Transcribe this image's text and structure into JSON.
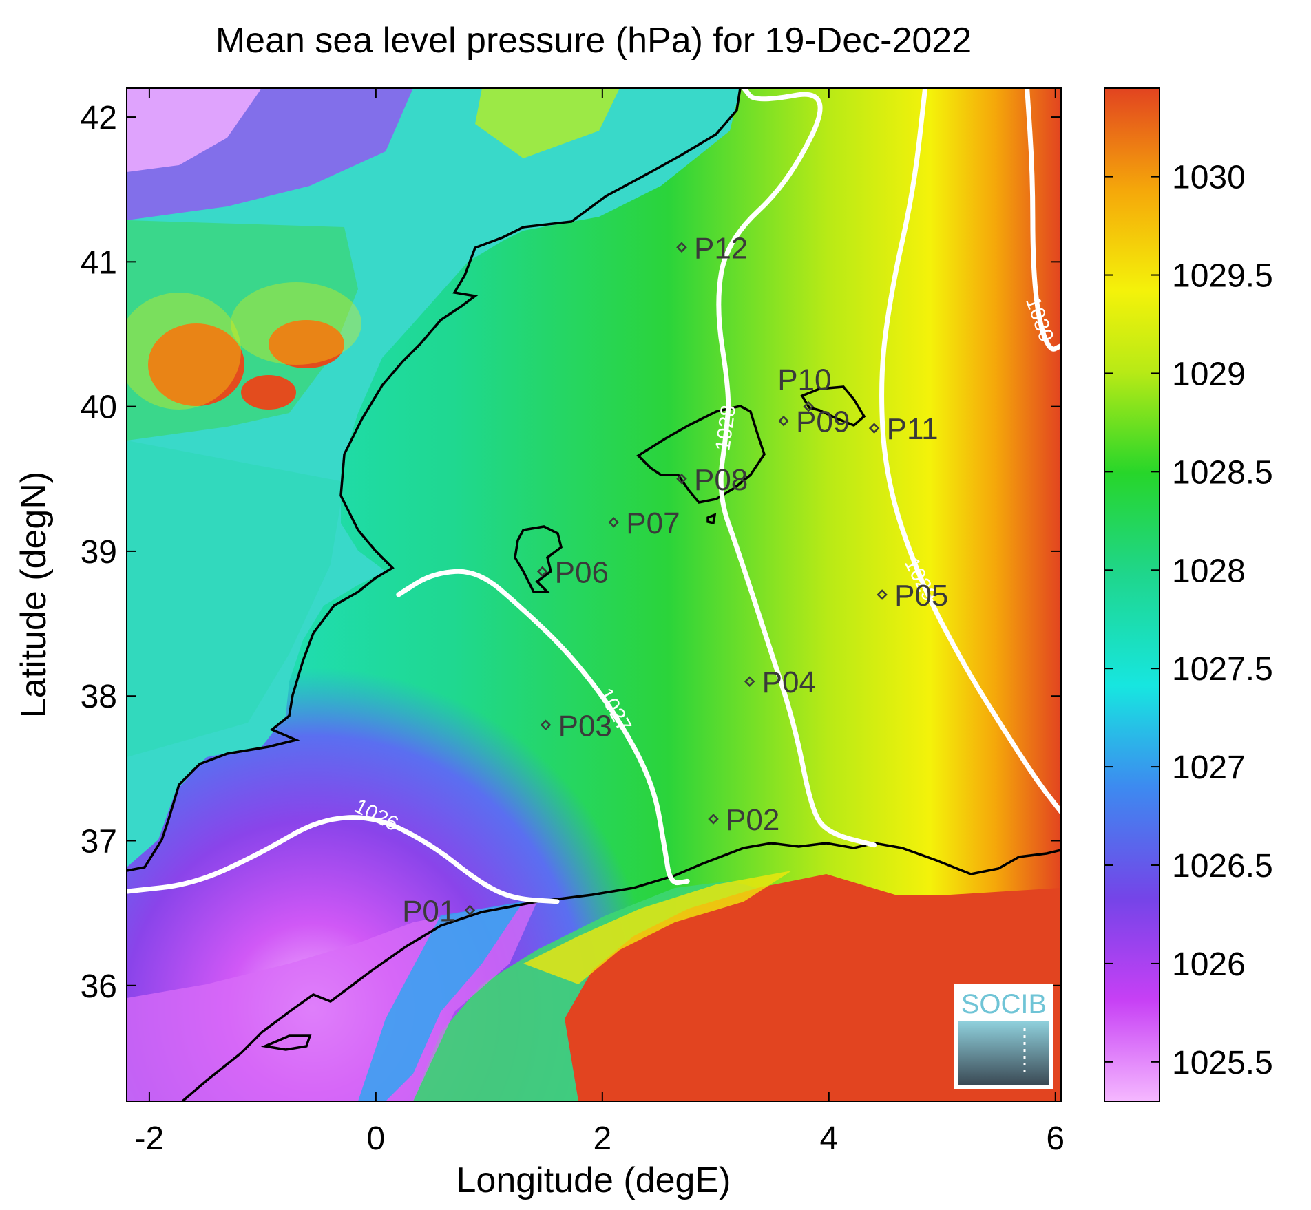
{
  "chart_data": {
    "type": "heatmap",
    "title": "Mean sea level pressure (hPa) for 19-Dec-2022",
    "xlabel": "Longitude (degE)",
    "ylabel": "Latitude (degN)",
    "xlim": [
      -2.2,
      6.05
    ],
    "ylim": [
      35.2,
      42.2
    ],
    "x_ticks": [
      -2,
      0,
      2,
      4,
      6
    ],
    "x_tick_labels": [
      "-2",
      "0",
      "2",
      "4",
      "6"
    ],
    "y_ticks": [
      36,
      37,
      38,
      39,
      40,
      41,
      42
    ],
    "y_tick_labels": [
      "36",
      "37",
      "38",
      "39",
      "40",
      "41",
      "42"
    ],
    "colorbar": {
      "range": [
        1025.3,
        1030.45
      ],
      "ticks": [
        1025.5,
        1026,
        1026.5,
        1027,
        1027.5,
        1028,
        1028.5,
        1029,
        1029.5,
        1030
      ],
      "tick_labels": [
        "1025.5",
        "1026",
        "1026.5",
        "1027",
        "1027.5",
        "1028",
        "1028.5",
        "1029",
        "1029.5",
        "1030"
      ],
      "colors": [
        "#f5b8ff",
        "#c740f5",
        "#7544e8",
        "#3d8af0",
        "#17e6e0",
        "#1fd68c",
        "#27d62a",
        "#b8ea16",
        "#f4f20a",
        "#f5a70a",
        "#e24420"
      ]
    },
    "points": [
      {
        "name": "P01",
        "lon": 0.83,
        "lat": 36.52
      },
      {
        "name": "P02",
        "lon": 2.98,
        "lat": 37.15
      },
      {
        "name": "P03",
        "lon": 1.5,
        "lat": 37.8
      },
      {
        "name": "P04",
        "lon": 3.3,
        "lat": 38.1
      },
      {
        "name": "P05",
        "lon": 4.47,
        "lat": 38.7
      },
      {
        "name": "P06",
        "lon": 1.47,
        "lat": 38.86
      },
      {
        "name": "P07",
        "lon": 2.1,
        "lat": 39.2
      },
      {
        "name": "P08",
        "lon": 2.7,
        "lat": 39.5
      },
      {
        "name": "P09",
        "lon": 3.6,
        "lat": 39.9
      },
      {
        "name": "P10",
        "lon": 3.82,
        "lat": 40.0
      },
      {
        "name": "P11",
        "lon": 4.4,
        "lat": 39.85
      },
      {
        "name": "P12",
        "lon": 2.7,
        "lat": 41.1
      }
    ],
    "contours": [
      {
        "level": 1026,
        "label": "1026",
        "points": [
          [
            -2.2,
            36.65
          ],
          [
            -1.6,
            36.7
          ],
          [
            -1.0,
            36.92
          ],
          [
            -0.5,
            37.15
          ],
          [
            0.0,
            37.17
          ],
          [
            0.5,
            36.97
          ],
          [
            0.9,
            36.72
          ],
          [
            1.2,
            36.6
          ],
          [
            1.6,
            36.58
          ]
        ]
      },
      {
        "level": 1027,
        "label": "1027",
        "points": [
          [
            0.2,
            38.7
          ],
          [
            0.5,
            38.85
          ],
          [
            0.9,
            38.87
          ],
          [
            1.3,
            38.6
          ],
          [
            1.7,
            38.3
          ],
          [
            2.1,
            37.9
          ],
          [
            2.45,
            37.4
          ],
          [
            2.55,
            36.95
          ],
          [
            2.6,
            36.7
          ],
          [
            2.75,
            36.72
          ]
        ]
      },
      {
        "level": 1028,
        "label": "1028",
        "points": [
          [
            3.25,
            42.2
          ],
          [
            3.35,
            42.1
          ],
          [
            4.05,
            42.2
          ],
          [
            3.65,
            41.55
          ],
          [
            3.1,
            41.15
          ],
          [
            3.0,
            40.7
          ],
          [
            3.12,
            40.1
          ],
          [
            3.1,
            39.85
          ],
          [
            3.02,
            39.4
          ],
          [
            3.2,
            39.0
          ],
          [
            3.45,
            38.4
          ],
          [
            3.7,
            37.8
          ],
          [
            3.85,
            37.2
          ],
          [
            4.0,
            37.05
          ],
          [
            4.4,
            36.97
          ]
        ]
      },
      {
        "level": 1029,
        "label": "1029",
        "points": [
          [
            4.85,
            42.2
          ],
          [
            4.75,
            41.5
          ],
          [
            4.55,
            40.8
          ],
          [
            4.45,
            40.2
          ],
          [
            4.5,
            39.5
          ],
          [
            4.8,
            38.8
          ],
          [
            5.2,
            38.2
          ],
          [
            5.6,
            37.7
          ],
          [
            5.85,
            37.4
          ],
          [
            6.05,
            37.2
          ]
        ]
      },
      {
        "level": 1030,
        "label": "1030",
        "points": [
          [
            5.75,
            42.2
          ],
          [
            5.8,
            41.6
          ],
          [
            5.8,
            41.0
          ],
          [
            5.85,
            40.6
          ],
          [
            5.95,
            40.38
          ],
          [
            6.05,
            40.42
          ]
        ]
      }
    ],
    "logo_text": "SOCIB"
  }
}
